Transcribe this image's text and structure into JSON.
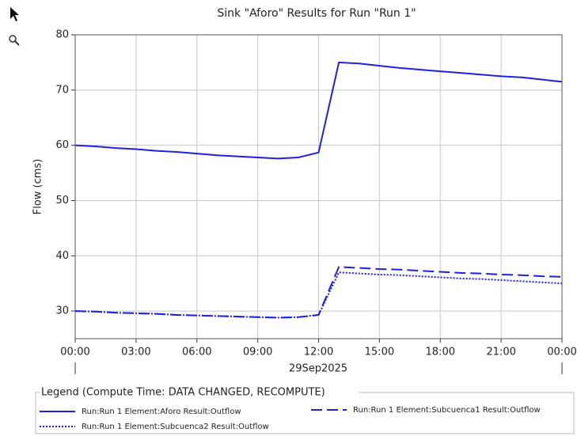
{
  "chart_data": {
    "type": "line",
    "title": "Sink \"Aforo\" Results for Run \"Run 1\"",
    "ylabel": "Flow (cms)",
    "date_label": "29Sep2025",
    "legend_title": "Legend (Compute Time: DATA CHANGED, RECOMPUTE)",
    "x": [
      0,
      1,
      2,
      3,
      4,
      5,
      6,
      7,
      8,
      9,
      10,
      11,
      12,
      13,
      14,
      15,
      16,
      17,
      18,
      19,
      20,
      21,
      22,
      23,
      24
    ],
    "xlim": [
      0,
      24
    ],
    "xticks": [
      {
        "value": 0,
        "label": "00:00"
      },
      {
        "value": 3,
        "label": "03:00"
      },
      {
        "value": 6,
        "label": "06:00"
      },
      {
        "value": 9,
        "label": "09:00"
      },
      {
        "value": 12,
        "label": "12:00"
      },
      {
        "value": 15,
        "label": "15:00"
      },
      {
        "value": 18,
        "label": "18:00"
      },
      {
        "value": 21,
        "label": "21:00"
      },
      {
        "value": 24,
        "label": "00:00"
      }
    ],
    "ylim": [
      25,
      80
    ],
    "yticks": [
      30,
      40,
      50,
      60,
      70,
      80
    ],
    "grid": true,
    "series": [
      {
        "name": "Run:Run 1 Element:Aforo Result:Outflow",
        "color": "#1f1fe6",
        "dash": "solid",
        "values": [
          60.0,
          59.8,
          59.5,
          59.3,
          59.0,
          58.8,
          58.5,
          58.2,
          58.0,
          57.8,
          57.6,
          57.8,
          58.7,
          75.0,
          74.8,
          74.4,
          74.0,
          73.7,
          73.4,
          73.1,
          72.8,
          72.5,
          72.3,
          71.9,
          71.5
        ]
      },
      {
        "name": "Run:Run 1 Element:Subcuenca1 Result:Outflow",
        "color": "#1f1fe6",
        "dash": "dashed",
        "values": [
          30.0,
          29.9,
          29.7,
          29.6,
          29.5,
          29.3,
          29.2,
          29.1,
          29.0,
          28.9,
          28.8,
          28.9,
          29.3,
          38.0,
          37.8,
          37.6,
          37.5,
          37.3,
          37.1,
          36.9,
          36.8,
          36.6,
          36.5,
          36.3,
          36.2
        ]
      },
      {
        "name": "Run:Run 1 Element:Subcuenca2 Result:Outflow",
        "color": "#1f1fe6",
        "dash": "dotted",
        "values": [
          30.0,
          29.9,
          29.7,
          29.6,
          29.5,
          29.3,
          29.2,
          29.1,
          29.0,
          28.9,
          28.8,
          28.9,
          29.3,
          37.0,
          36.8,
          36.6,
          36.5,
          36.3,
          36.1,
          35.9,
          35.8,
          35.6,
          35.4,
          35.2,
          35.0
        ]
      }
    ]
  }
}
